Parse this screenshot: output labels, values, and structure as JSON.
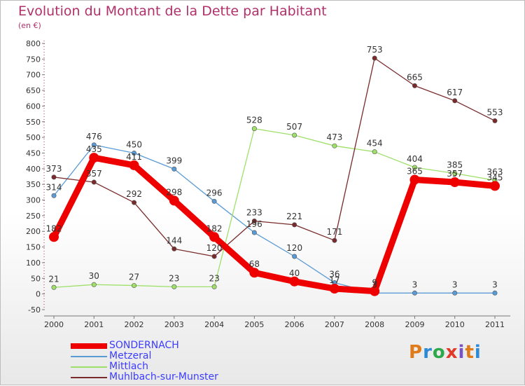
{
  "title": "Evolution du Montant de la Dette par Habitant",
  "subtitle": "(en €)",
  "brand": "Proxiti",
  "brand_colors": [
    "#e07b1a",
    "#2d8ad6",
    "#2ea84a",
    "#e03a2a",
    "#7a52c8",
    "#e07b1a",
    "#2d8ad6"
  ],
  "chart_data": {
    "type": "line",
    "title": "Evolution du Montant de la Dette par Habitant",
    "ylabel": "(en €)",
    "x": [
      "2000",
      "2001",
      "2002",
      "2003",
      "2004",
      "2005",
      "2006",
      "2007",
      "2008",
      "2009",
      "2010",
      "2011"
    ],
    "ylim": [
      -50,
      800
    ],
    "yticks": [
      -50,
      0,
      50,
      100,
      150,
      200,
      250,
      300,
      350,
      400,
      450,
      500,
      550,
      600,
      650,
      700,
      750,
      800
    ],
    "grid": false,
    "legend_position": "bottom-left",
    "series": [
      {
        "name": "SONDERNACH",
        "color": "#ee0000",
        "values": [
          182,
          435,
          411,
          298,
          182,
          68,
          40,
          17,
          9,
          365,
          357,
          345
        ],
        "labels": [
          "182",
          "435",
          "411",
          "298",
          "182",
          "68",
          "40",
          "17",
          "9",
          "365",
          "357",
          "345"
        ]
      },
      {
        "name": "Metzeral",
        "color": "#5b9bd5",
        "values": [
          314,
          476,
          450,
          399,
          296,
          196,
          120,
          36,
          3,
          3,
          3,
          3
        ],
        "labels": [
          "314",
          "476",
          "450",
          "399",
          "296",
          "196",
          "120",
          "36",
          "3",
          "3",
          "3",
          "3"
        ]
      },
      {
        "name": "Mittlach",
        "color": "#9ee06a",
        "values": [
          21,
          30,
          27,
          23,
          23,
          528,
          507,
          473,
          454,
          404,
          385,
          363
        ],
        "labels": [
          "21",
          "30",
          "27",
          "23",
          "23",
          "528",
          "507",
          "473",
          "454",
          "404",
          "385",
          "363"
        ]
      },
      {
        "name": "Muhlbach-sur-Munster",
        "color": "#7a2a2a",
        "values": [
          373,
          357,
          292,
          144,
          120,
          233,
          221,
          171,
          753,
          665,
          617,
          553
        ],
        "labels": [
          "373",
          "357",
          "292",
          "144",
          "120",
          "233",
          "221",
          "171",
          "753",
          "665",
          "617",
          "553"
        ]
      }
    ]
  }
}
